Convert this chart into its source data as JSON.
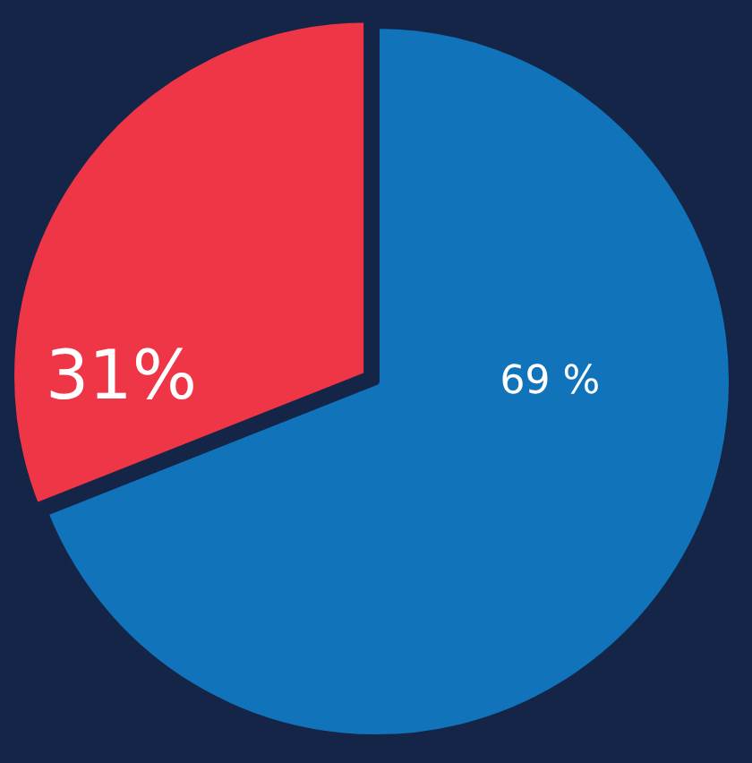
{
  "chart_data": {
    "type": "pie",
    "categories": [
      null,
      null
    ],
    "values": [
      69,
      31
    ],
    "colors": [
      "#1174bb",
      "#ef3647"
    ],
    "value_labels": [
      "69 %",
      "31%"
    ],
    "legend": false
  }
}
